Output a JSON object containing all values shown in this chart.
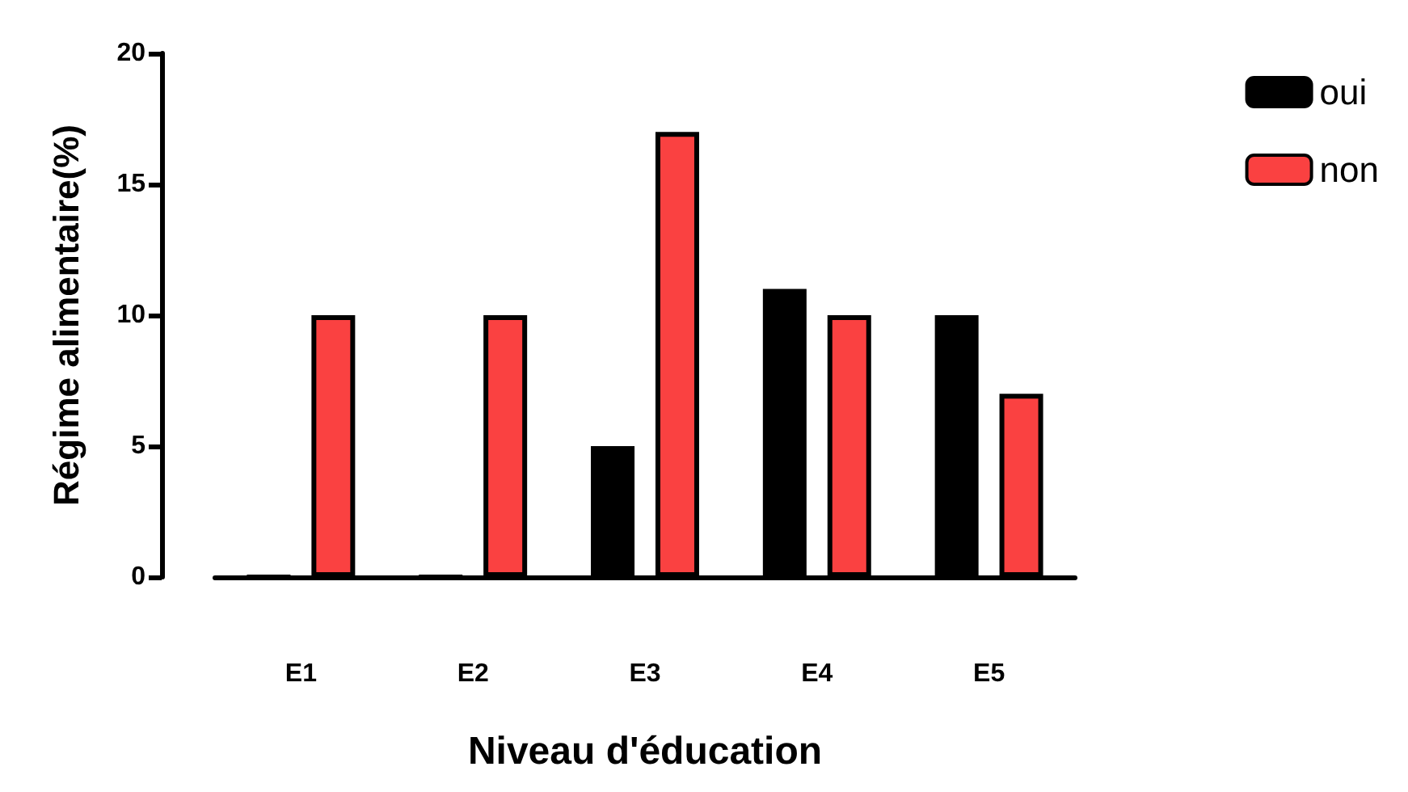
{
  "chart_data": {
    "type": "bar",
    "xlabel": "Niveau d'éducation",
    "ylabel": "Régime alimentaire(%)",
    "categories": [
      "E1",
      "E2",
      "E3",
      "E4",
      "E5"
    ],
    "series": [
      {
        "name": "oui",
        "color": "#000000",
        "values": [
          0,
          0,
          5,
          11,
          10
        ]
      },
      {
        "name": "non",
        "color": "#fa4141",
        "values": [
          10,
          10,
          17,
          10,
          7
        ]
      }
    ],
    "ylim": [
      0,
      20
    ],
    "yticks": [
      0,
      5,
      10,
      15,
      20
    ],
    "grid": false,
    "legend": "top right"
  }
}
